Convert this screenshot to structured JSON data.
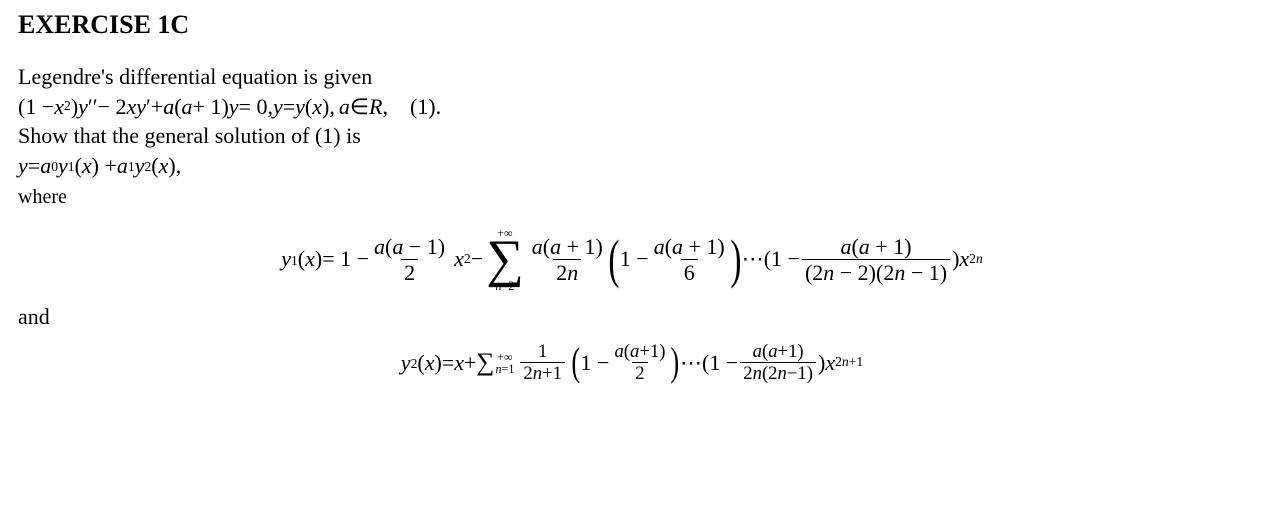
{
  "heading": "EXERCISE 1C",
  "intro": "Legendre's differential equation is given",
  "ode_lhs_1": "(1 − ",
  "ode_x": "x",
  "ode_sq": "2",
  "ode_lhs_2": ")",
  "y": "y",
  "dprime": "′′",
  "ode_mid_1": " − 2",
  "prime": "′",
  "ode_mid_2": " + ",
  "a": "a",
  "ode_mid_3": "(",
  "ode_mid_4": " + 1)",
  "ode_rhs": " = 0, ",
  "ode_yfun": " = ",
  "ode_paren": "(",
  "ode_paren2": "),",
  "ode_in": " ∈",
  "R": "R",
  "ode_tag": ", (1).",
  "show": "Show that the general solution of (1) is",
  "gs_eq": " = ",
  "a0": "a",
  "sub0": "0",
  "y1": "y",
  "sub1": "1",
  "gs_mid": "(",
  "gs_close": ") + ",
  "a1": "a",
  "y2": "y",
  "sub2": "2",
  "gs_end": "),",
  "where": "where",
  "and": "and",
  "e1": {
    "lead_open": "(",
    "lead_close": ")",
    "eq": " = 1 − ",
    "f1num_open": "(",
    "f1num_mid": " − 1)",
    "f1den": "2",
    "after_f1": " − ",
    "sum_top": "+∞",
    "sum_bot": "n=2",
    "f2num_open": "(",
    "f2num_mid": " + 1)",
    "f2den": "2",
    "n": "n",
    "p_open_1": "1 − ",
    "f3den": "6",
    "dots": " ⋯ ",
    "p2_1": "(1 − ",
    "lastden_open": "(2",
    "lastden_mid": " − 2)(2",
    "lastden_close": " − 1)",
    "tail_close": ")",
    "exp2n": "2"
  },
  "e2": {
    "lead_open": "(",
    "lead_close": ")",
    "eq": " = ",
    "plus": " + ",
    "sum_top": "+∞",
    "sum_bot": "n=1",
    "f1num": "1",
    "f1den_open": "2",
    "f1den_close": "+1",
    "p1": "1 − ",
    "fa_num_open": "(",
    "fa_num_mid": "+1)",
    "fa_den": "2",
    "dots": " ⋯ ",
    "p2": "(1 − ",
    "lastden_open": "2",
    "lastden_mid": "(2",
    "lastden_close": "−1)",
    "tail_close": ")",
    "expOpen": "2",
    "expClose": "+1"
  }
}
